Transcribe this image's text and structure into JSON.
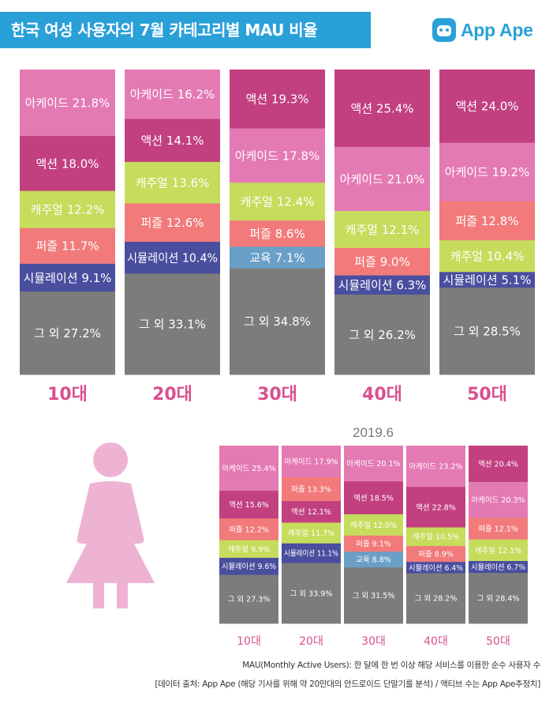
{
  "header": {
    "title": "한국 여성 사용자의 7월 카테고리별 MAU 비율",
    "brand": "App Ape"
  },
  "colors": {
    "action": "#c2407f",
    "arcade": "#e47ab3",
    "casual": "#c6dc5c",
    "puzzle": "#f27a7a",
    "simulation": "#4a4e9e",
    "education": "#6a9fc8",
    "other": "#7c7c7c",
    "age_label": "#d9508f",
    "banner": "#2aa0d8"
  },
  "chart_data": [
    {
      "type": "stacked-bar",
      "title": "7월",
      "categories": [
        "10대",
        "20대",
        "30대",
        "40대",
        "50대"
      ],
      "unit": "%",
      "bars": [
        {
          "category": "10대",
          "segments": [
            {
              "label": "아케이드",
              "key": "arcade",
              "value": 21.8
            },
            {
              "label": "액션",
              "key": "action",
              "value": 18.0
            },
            {
              "label": "캐주얼",
              "key": "casual",
              "value": 12.2
            },
            {
              "label": "퍼즐",
              "key": "puzzle",
              "value": 11.7
            },
            {
              "label": "시뮬레이션",
              "key": "simulation",
              "value": 9.1
            },
            {
              "label": "그 외",
              "key": "other",
              "value": 27.2
            }
          ]
        },
        {
          "category": "20대",
          "segments": [
            {
              "label": "아케이드",
              "key": "arcade",
              "value": 16.2
            },
            {
              "label": "액션",
              "key": "action",
              "value": 14.1
            },
            {
              "label": "캐주얼",
              "key": "casual",
              "value": 13.6
            },
            {
              "label": "퍼즐",
              "key": "puzzle",
              "value": 12.6
            },
            {
              "label": "시뮬레이션",
              "key": "simulation",
              "value": 10.4
            },
            {
              "label": "그 외",
              "key": "other",
              "value": 33.1
            }
          ]
        },
        {
          "category": "30대",
          "segments": [
            {
              "label": "액션",
              "key": "action",
              "value": 19.3
            },
            {
              "label": "아케이드",
              "key": "arcade",
              "value": 17.8
            },
            {
              "label": "캐주얼",
              "key": "casual",
              "value": 12.4
            },
            {
              "label": "퍼즐",
              "key": "puzzle",
              "value": 8.6
            },
            {
              "label": "교육",
              "key": "education",
              "value": 7.1
            },
            {
              "label": "그 외",
              "key": "other",
              "value": 34.8
            }
          ]
        },
        {
          "category": "40대",
          "segments": [
            {
              "label": "액션",
              "key": "action",
              "value": 25.4
            },
            {
              "label": "아케이드",
              "key": "arcade",
              "value": 21.0
            },
            {
              "label": "캐주얼",
              "key": "casual",
              "value": 12.1
            },
            {
              "label": "퍼즐",
              "key": "puzzle",
              "value": 9.0
            },
            {
              "label": "시뮬레이션",
              "key": "simulation",
              "value": 6.3
            },
            {
              "label": "그 외",
              "key": "other",
              "value": 26.2
            }
          ]
        },
        {
          "category": "50대",
          "segments": [
            {
              "label": "액션",
              "key": "action",
              "value": 24.0
            },
            {
              "label": "아케이드",
              "key": "arcade",
              "value": 19.2
            },
            {
              "label": "퍼즐",
              "key": "puzzle",
              "value": 12.8
            },
            {
              "label": "캐주얼",
              "key": "casual",
              "value": 10.4
            },
            {
              "label": "시뮬레이션",
              "key": "simulation",
              "value": 5.1
            },
            {
              "label": "그 외",
              "key": "other",
              "value": 28.5
            }
          ]
        }
      ]
    },
    {
      "type": "stacked-bar",
      "title": "2019.6",
      "categories": [
        "10대",
        "20대",
        "30대",
        "40대",
        "50대"
      ],
      "unit": "%",
      "bars": [
        {
          "category": "10대",
          "segments": [
            {
              "label": "아케이드",
              "key": "arcade",
              "value": 25.4
            },
            {
              "label": "액션",
              "key": "action",
              "value": 15.6
            },
            {
              "label": "퍼즐",
              "key": "puzzle",
              "value": 12.2
            },
            {
              "label": "캐주얼",
              "key": "casual",
              "value": 9.9
            },
            {
              "label": "시뮬레이션",
              "key": "simulation",
              "value": 9.6
            },
            {
              "label": "그 외",
              "key": "other",
              "value": 27.3
            }
          ]
        },
        {
          "category": "20대",
          "segments": [
            {
              "label": "아케이드",
              "key": "arcade",
              "value": 17.9
            },
            {
              "label": "퍼즐",
              "key": "puzzle",
              "value": 13.3
            },
            {
              "label": "액션",
              "key": "action",
              "value": 12.1
            },
            {
              "label": "캐주얼",
              "key": "casual",
              "value": 11.7
            },
            {
              "label": "시뮬레이션",
              "key": "simulation",
              "value": 11.1
            },
            {
              "label": "그 외",
              "key": "other",
              "value": 33.9
            }
          ]
        },
        {
          "category": "30대",
          "segments": [
            {
              "label": "아케이드",
              "key": "arcade",
              "value": 20.1
            },
            {
              "label": "액션",
              "key": "action",
              "value": 18.5
            },
            {
              "label": "캐주얼",
              "key": "casual",
              "value": 12.0
            },
            {
              "label": "퍼즐",
              "key": "puzzle",
              "value": 9.1
            },
            {
              "label": "교육",
              "key": "education",
              "value": 8.8
            },
            {
              "label": "그 외",
              "key": "other",
              "value": 31.5
            }
          ]
        },
        {
          "category": "40대",
          "segments": [
            {
              "label": "아케이드",
              "key": "arcade",
              "value": 23.2
            },
            {
              "label": "액션",
              "key": "action",
              "value": 22.8
            },
            {
              "label": "캐주얼",
              "key": "casual",
              "value": 10.5
            },
            {
              "label": "퍼즐",
              "key": "puzzle",
              "value": 8.9
            },
            {
              "label": "시뮬레이션",
              "key": "simulation",
              "value": 6.4
            },
            {
              "label": "그 외",
              "key": "other",
              "value": 28.2
            }
          ]
        },
        {
          "category": "50대",
          "segments": [
            {
              "label": "액션",
              "key": "action",
              "value": 20.4
            },
            {
              "label": "아케이드",
              "key": "arcade",
              "value": 20.3
            },
            {
              "label": "퍼즐",
              "key": "puzzle",
              "value": 12.1
            },
            {
              "label": "캐주얼",
              "key": "casual",
              "value": 12.1
            },
            {
              "label": "시뮬레이션",
              "key": "simulation",
              "value": 6.7
            },
            {
              "label": "그 외",
              "key": "other",
              "value": 28.4
            }
          ]
        }
      ]
    }
  ],
  "footnotes": {
    "mau": "MAU(Monthly Active Users): 한 달에 한 번 이상 해당 서비스를 이용한 순수 사용자 수",
    "source": "[데이터 출처: App Ape (해당 기사를 위해 약 20만대의 안드로이드 단말기를 분석) / 액티브 수는 App Ape추정치]"
  }
}
